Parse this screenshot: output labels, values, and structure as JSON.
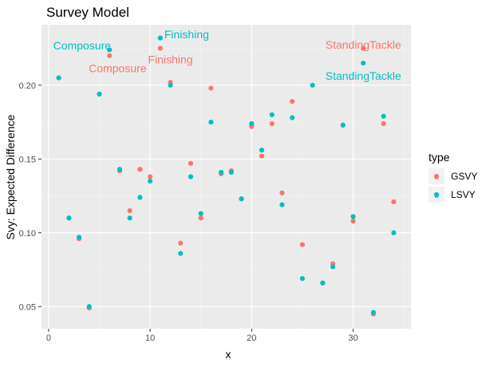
{
  "chart_data": {
    "type": "scatter",
    "title": "Survey Model",
    "xlabel": "x",
    "ylabel": "Svy: Expected Difference",
    "xlim": [
      -0.7,
      35.7
    ],
    "ylim": [
      0.035,
      0.241
    ],
    "x_ticks": [
      0,
      10,
      20,
      30
    ],
    "y_ticks": [
      0.05,
      0.1,
      0.15,
      0.2
    ],
    "y_tick_labels": [
      "0.05",
      "0.10",
      "0.15",
      "0.20"
    ],
    "grid": true,
    "legend": {
      "title": "type",
      "position": "right"
    },
    "series": [
      {
        "name": "GSVY",
        "color": "#F8766D",
        "x": [
          1,
          2,
          3,
          4,
          5,
          6,
          7,
          8,
          9,
          10,
          11,
          12,
          13,
          14,
          15,
          16,
          17,
          18,
          19,
          20,
          21,
          22,
          23,
          24,
          25,
          27,
          28,
          29,
          30,
          31,
          32,
          33,
          34
        ],
        "y": [
          0.205,
          0.11,
          0.096,
          0.049,
          0.194,
          0.22,
          0.142,
          0.115,
          0.143,
          0.138,
          0.225,
          0.202,
          0.093,
          0.147,
          0.11,
          0.198,
          0.14,
          0.142,
          0.123,
          0.172,
          0.152,
          0.174,
          0.127,
          0.189,
          0.092,
          0.066,
          0.079,
          0.173,
          0.108,
          0.225,
          0.045,
          0.174,
          0.121
        ]
      },
      {
        "name": "LSVY",
        "color": "#00BFC4",
        "x": [
          1,
          2,
          3,
          4,
          5,
          6,
          7,
          8,
          9,
          10,
          11,
          12,
          13,
          14,
          15,
          16,
          17,
          18,
          19,
          20,
          21,
          22,
          23,
          24,
          25,
          26,
          27,
          28,
          29,
          30,
          31,
          32,
          33,
          34
        ],
        "y": [
          0.205,
          0.11,
          0.097,
          0.05,
          0.194,
          0.224,
          0.143,
          0.11,
          0.124,
          0.135,
          0.232,
          0.2,
          0.086,
          0.138,
          0.113,
          0.175,
          0.141,
          0.141,
          0.123,
          0.174,
          0.156,
          0.18,
          0.119,
          0.178,
          0.069,
          0.2,
          0.066,
          0.077,
          0.173,
          0.111,
          0.215,
          0.046,
          0.179,
          0.1
        ]
      }
    ],
    "annotations": [
      {
        "text": "Composure",
        "series": "LSVY",
        "x": 3.3,
        "y": 0.227
      },
      {
        "text": "Finishing",
        "series": "LSVY",
        "x": 13.6,
        "y": 0.2345
      },
      {
        "text": "StandingTackle",
        "series": "GSVY",
        "x": 31.0,
        "y": 0.2275
      },
      {
        "text": "Composure",
        "series": "GSVY",
        "x": 6.8,
        "y": 0.2115
      },
      {
        "text": "Finishing",
        "series": "GSVY",
        "x": 12.0,
        "y": 0.2175
      },
      {
        "text": "StandingTackle",
        "series": "LSVY",
        "x": 31.0,
        "y": 0.2065
      }
    ]
  }
}
